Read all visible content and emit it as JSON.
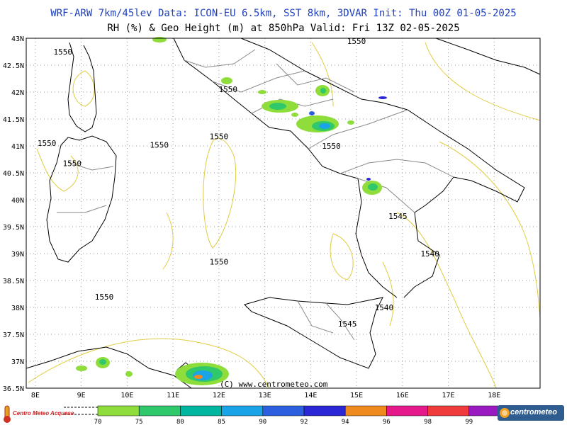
{
  "header": {
    "title_line1": "WRF-ARW 7km/45lev  Data: ICON-EU 6.5km, SST 8km, 3DVAR  Init: Thu 00Z 01-05-2025",
    "title_line2": "RH (%) & Geo Height (m) at 850hPa  Valid: Fri 13Z 02-05-2025"
  },
  "watermark": "(C) www.centrometeo.com",
  "logos": {
    "left": "Centro Meteo Acquese",
    "right": "centrometeo"
  },
  "colors": {
    "coast": "#000000",
    "borders": "#8a8a8a",
    "contour": "#e0cc40",
    "title1": "#1f3fbf",
    "grid": "#9a9a9a"
  },
  "chart_data": {
    "type": "heatmap",
    "title": "RH (%) & Geo Height (m) at 850hPa",
    "x_axis": {
      "ticks": [
        "8E",
        "9E",
        "10E",
        "11E",
        "12E",
        "13E",
        "14E",
        "15E",
        "16E",
        "17E",
        "18E"
      ],
      "range": [
        7.8,
        19.0
      ]
    },
    "y_axis": {
      "ticks": [
        "36.5N",
        "37N",
        "37.5N",
        "38N",
        "38.5N",
        "39N",
        "39.5N",
        "40N",
        "40.5N",
        "41N",
        "41.5N",
        "42N",
        "42.5N",
        "43N"
      ],
      "range": [
        36.5,
        43.0
      ]
    },
    "grid": true,
    "colorbar": {
      "levels": [
        "70",
        "75",
        "80",
        "85",
        "90",
        "92",
        "94",
        "96",
        "98",
        "99"
      ],
      "colors": [
        "#8fdd3a",
        "#2fc86a",
        "#00b6a0",
        "#1aa3e6",
        "#2b5fe0",
        "#2b26d6",
        "#ef8a1f",
        "#e6198a",
        "#ef3b3b",
        "#9a1ac2",
        "#a8a8a8"
      ]
    },
    "contour_labels": [
      {
        "label": "1550",
        "lon": 8.6,
        "lat": 42.75
      },
      {
        "label": "1550",
        "lon": 12.2,
        "lat": 42.05
      },
      {
        "label": "1550",
        "lon": 12.0,
        "lat": 41.18
      },
      {
        "label": "1550",
        "lon": 10.7,
        "lat": 41.02
      },
      {
        "label": "1550",
        "lon": 8.25,
        "lat": 41.05
      },
      {
        "label": "1550",
        "lon": 8.8,
        "lat": 40.68
      },
      {
        "label": "1550",
        "lon": 14.45,
        "lat": 41.0
      },
      {
        "label": "1550",
        "lon": 12.0,
        "lat": 38.85
      },
      {
        "label": "1550",
        "lon": 9.5,
        "lat": 38.2
      },
      {
        "label": "1550",
        "lon": 15.0,
        "lat": 42.95
      },
      {
        "label": "1545",
        "lon": 15.9,
        "lat": 39.7
      },
      {
        "label": "1540",
        "lon": 16.6,
        "lat": 39.0
      },
      {
        "label": "1540",
        "lon": 15.6,
        "lat": 38.0
      },
      {
        "label": "1545",
        "lon": 14.8,
        "lat": 37.7
      }
    ]
  }
}
